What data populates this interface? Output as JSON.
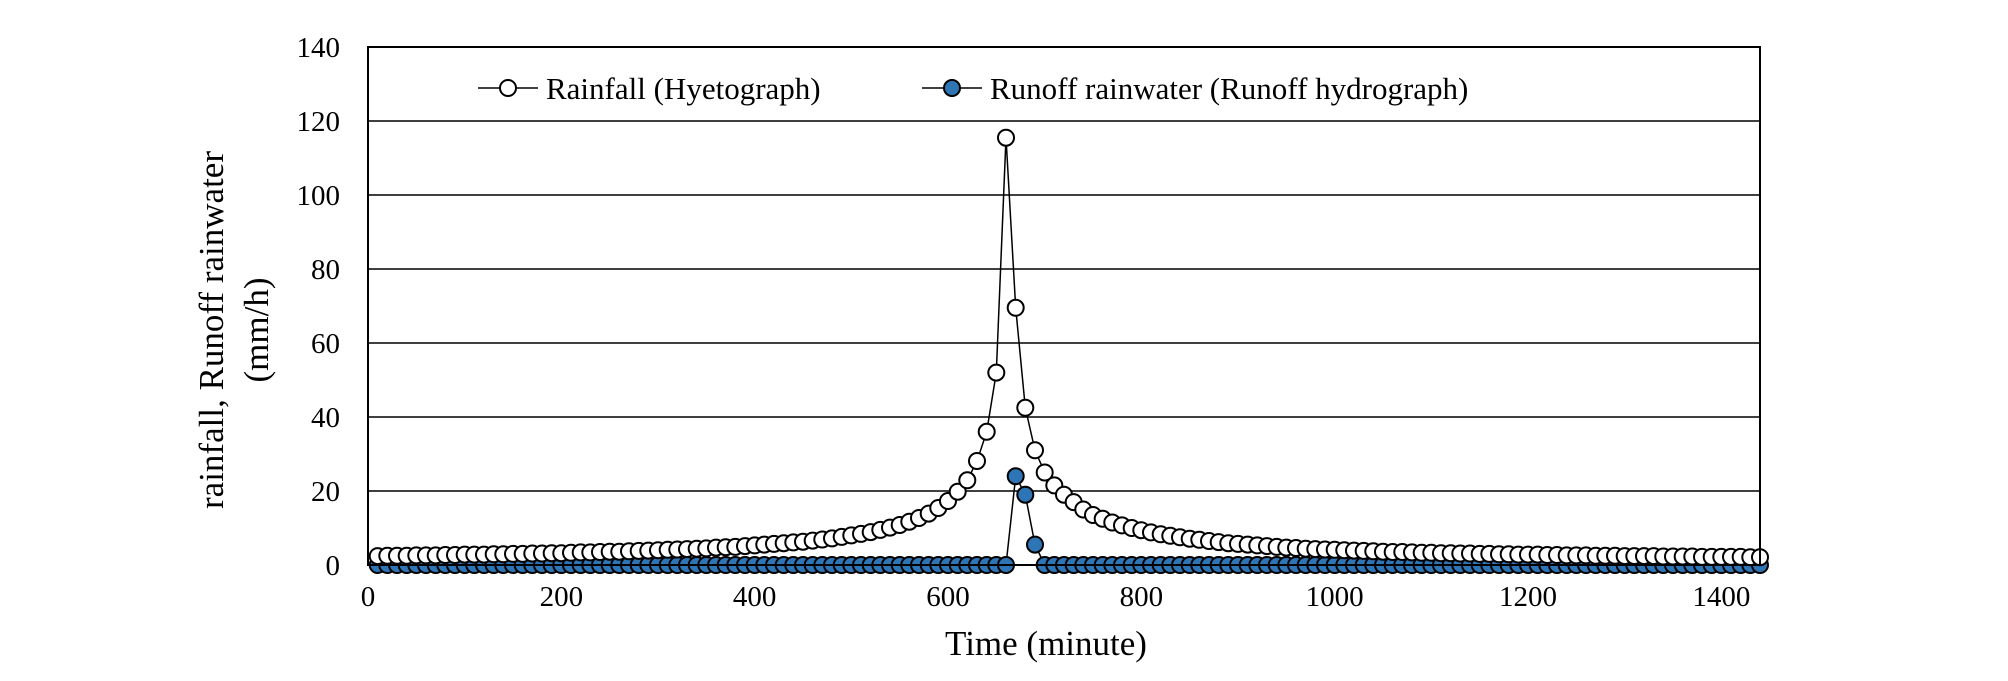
{
  "chart_data": {
    "type": "line",
    "xlabel": "Time (minute)",
    "ylabel_lines": [
      "rainfall, Runoff rainwater",
      "(mm/h)"
    ],
    "xlim": [
      0,
      1440
    ],
    "ylim": [
      0,
      140
    ],
    "xticks": [
      0,
      200,
      400,
      600,
      800,
      1000,
      1200,
      1400
    ],
    "yticks": [
      0,
      20,
      40,
      60,
      80,
      100,
      120,
      140
    ],
    "grid": "horizontal",
    "legend_position": "top",
    "series": [
      {
        "name": "Rainfall (Hyetograph)",
        "marker": "open-circle",
        "color": "#000000",
        "x": [
          10,
          20,
          30,
          40,
          50,
          60,
          70,
          80,
          90,
          100,
          110,
          120,
          130,
          140,
          150,
          160,
          170,
          180,
          190,
          200,
          210,
          220,
          230,
          240,
          250,
          260,
          270,
          280,
          290,
          300,
          310,
          320,
          330,
          340,
          350,
          360,
          370,
          380,
          390,
          400,
          410,
          420,
          430,
          440,
          450,
          460,
          470,
          480,
          490,
          500,
          510,
          520,
          530,
          540,
          550,
          560,
          570,
          580,
          590,
          600,
          610,
          620,
          630,
          640,
          650,
          660,
          670,
          680,
          690,
          700,
          710,
          720,
          730,
          740,
          750,
          760,
          770,
          780,
          790,
          800,
          810,
          820,
          830,
          840,
          850,
          860,
          870,
          880,
          890,
          900,
          910,
          920,
          930,
          940,
          950,
          960,
          970,
          980,
          990,
          1000,
          1010,
          1020,
          1030,
          1040,
          1050,
          1060,
          1070,
          1080,
          1090,
          1100,
          1110,
          1120,
          1130,
          1140,
          1150,
          1160,
          1170,
          1180,
          1190,
          1200,
          1210,
          1220,
          1230,
          1240,
          1250,
          1260,
          1270,
          1280,
          1290,
          1300,
          1310,
          1320,
          1330,
          1340,
          1350,
          1360,
          1370,
          1380,
          1390,
          1400,
          1410,
          1420,
          1430,
          1440
        ],
        "values": [
          2.4,
          2.5,
          2.5,
          2.5,
          2.6,
          2.6,
          2.6,
          2.7,
          2.7,
          2.8,
          2.8,
          2.8,
          2.9,
          2.9,
          3.0,
          3.0,
          3.1,
          3.1,
          3.2,
          3.2,
          3.3,
          3.4,
          3.4,
          3.5,
          3.6,
          3.6,
          3.7,
          3.8,
          3.9,
          4.0,
          4.1,
          4.2,
          4.3,
          4.4,
          4.5,
          4.7,
          4.8,
          4.9,
          5.1,
          5.3,
          5.5,
          5.7,
          5.9,
          6.1,
          6.3,
          6.6,
          6.9,
          7.2,
          7.6,
          8.0,
          8.4,
          8.9,
          9.5,
          10.1,
          10.8,
          11.7,
          12.7,
          13.9,
          15.4,
          17.3,
          19.8,
          22.9,
          28.1,
          36.0,
          52.0,
          115.5,
          69.5,
          42.5,
          31.0,
          25.0,
          21.5,
          19.0,
          17.0,
          15.0,
          13.5,
          12.5,
          11.5,
          10.7,
          10.0,
          9.4,
          8.8,
          8.3,
          7.9,
          7.5,
          7.1,
          6.8,
          6.5,
          6.2,
          5.9,
          5.7,
          5.5,
          5.3,
          5.1,
          4.9,
          4.7,
          4.6,
          4.4,
          4.3,
          4.2,
          4.1,
          4.0,
          3.9,
          3.8,
          3.7,
          3.6,
          3.5,
          3.5,
          3.4,
          3.3,
          3.3,
          3.2,
          3.2,
          3.1,
          3.1,
          3.0,
          3.0,
          2.9,
          2.9,
          2.8,
          2.8,
          2.8,
          2.7,
          2.7,
          2.6,
          2.6,
          2.6,
          2.5,
          2.5,
          2.5,
          2.4,
          2.4,
          2.4,
          2.4,
          2.3,
          2.3,
          2.3,
          2.3,
          2.2,
          2.2,
          2.2,
          2.2,
          2.2,
          2.1,
          2.1
        ]
      },
      {
        "name": "Runoff rainwater (Runoff hydrograph)",
        "marker": "filled-circle",
        "color": "#2e75b6",
        "x": [
          10,
          20,
          30,
          40,
          50,
          60,
          70,
          80,
          90,
          100,
          110,
          120,
          130,
          140,
          150,
          160,
          170,
          180,
          190,
          200,
          210,
          220,
          230,
          240,
          250,
          260,
          270,
          280,
          290,
          300,
          310,
          320,
          330,
          340,
          350,
          360,
          370,
          380,
          390,
          400,
          410,
          420,
          430,
          440,
          450,
          460,
          470,
          480,
          490,
          500,
          510,
          520,
          530,
          540,
          550,
          560,
          570,
          580,
          590,
          600,
          610,
          620,
          630,
          640,
          650,
          660,
          670,
          680,
          690,
          700,
          710,
          720,
          730,
          740,
          750,
          760,
          770,
          780,
          790,
          800,
          810,
          820,
          830,
          840,
          850,
          860,
          870,
          880,
          890,
          900,
          910,
          920,
          930,
          940,
          950,
          960,
          970,
          980,
          990,
          1000,
          1010,
          1020,
          1030,
          1040,
          1050,
          1060,
          1070,
          1080,
          1090,
          1100,
          1110,
          1120,
          1130,
          1140,
          1150,
          1160,
          1170,
          1180,
          1190,
          1200,
          1210,
          1220,
          1230,
          1240,
          1250,
          1260,
          1270,
          1280,
          1290,
          1300,
          1310,
          1320,
          1330,
          1340,
          1350,
          1360,
          1370,
          1380,
          1390,
          1400,
          1410,
          1420,
          1430,
          1440
        ],
        "values": [
          0,
          0,
          0,
          0,
          0,
          0,
          0,
          0,
          0,
          0,
          0,
          0,
          0,
          0,
          0,
          0,
          0,
          0,
          0,
          0,
          0,
          0,
          0,
          0,
          0,
          0,
          0,
          0,
          0,
          0,
          0,
          0,
          0,
          0,
          0,
          0,
          0,
          0,
          0,
          0,
          0,
          0,
          0,
          0,
          0,
          0,
          0,
          0,
          0,
          0,
          0,
          0,
          0,
          0,
          0,
          0,
          0,
          0,
          0,
          0,
          0,
          0,
          0,
          0,
          0,
          0,
          24.0,
          19.0,
          5.5,
          0,
          0,
          0,
          0,
          0,
          0,
          0,
          0,
          0,
          0,
          0,
          0,
          0,
          0,
          0,
          0,
          0,
          0,
          0,
          0,
          0,
          0,
          0,
          0,
          0,
          0,
          0,
          0,
          0,
          0,
          0,
          0,
          0,
          0,
          0,
          0,
          0,
          0,
          0,
          0,
          0,
          0,
          0,
          0,
          0,
          0,
          0,
          0,
          0,
          0,
          0,
          0,
          0,
          0,
          0,
          0,
          0,
          0,
          0,
          0,
          0,
          0,
          0,
          0,
          0,
          0,
          0,
          0,
          0,
          0,
          0,
          0,
          0,
          0,
          0
        ]
      }
    ]
  }
}
